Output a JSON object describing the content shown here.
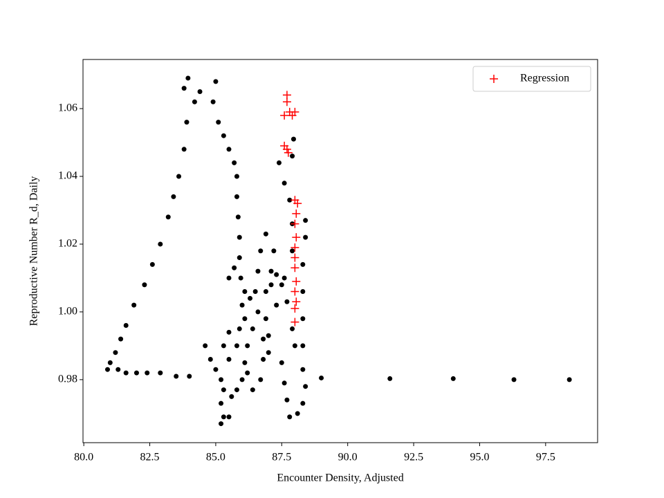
{
  "chart_data": {
    "type": "scatter",
    "xlabel": "Encounter Density, Adjusted",
    "ylabel": "Reproductive Number R_d, Daily",
    "xlim": [
      79.97,
      99.47
    ],
    "ylim": [
      0.9614,
      1.0745
    ],
    "xticks": [
      {
        "value": 80,
        "label": "80.0"
      },
      82.5,
      {
        "value": 85,
        "label": "85.0"
      },
      87.5,
      {
        "value": 90,
        "label": "90.0"
      },
      92.5,
      {
        "value": 95,
        "label": "95.0"
      },
      97.5
    ],
    "yticks": [
      0.98,
      {
        "value": 1,
        "label": "1.00"
      },
      1.02,
      1.04,
      1.06
    ],
    "legend": "upper right",
    "series": [
      {
        "marker": "o",
        "color": "#000000",
        "x": [
          80.9,
          81.0,
          81.2,
          81.4,
          81.6,
          81.9,
          82.3,
          82.6,
          82.9,
          83.2,
          83.4,
          83.6,
          83.8,
          83.9,
          83.8,
          83.95,
          84.2,
          84.4,
          85.0,
          84.9,
          85.1,
          85.3,
          85.5,
          85.7,
          85.8,
          85.8,
          85.85,
          85.9,
          85.9,
          85.95,
          86.1,
          86.0,
          85.7,
          85.5,
          81.3,
          81.6,
          82.0,
          82.4,
          82.9,
          83.5,
          84.0,
          84.6,
          84.8,
          85.0,
          85.2,
          85.3,
          85.2,
          85.3,
          85.2,
          85.5,
          85.6,
          85.8,
          86.0,
          86.1,
          86.2,
          86.4,
          86.6,
          86.9,
          87.1,
          87.2,
          86.9,
          86.7,
          86.6,
          86.5,
          86.3,
          86.1,
          85.9,
          85.5,
          85.3,
          85.5,
          85.8,
          86.2,
          86.4,
          86.7,
          86.8,
          87.0,
          87.3,
          87.5,
          87.3,
          87.1,
          86.9,
          86.8,
          87.0,
          87.5,
          87.6,
          87.7,
          87.8,
          88.1,
          88.3,
          88.4,
          88.3,
          88.3,
          88.3,
          88.3,
          88.3,
          88.4,
          88.4,
          88.0,
          87.9,
          87.7,
          87.6,
          87.9,
          87.9,
          87.8,
          87.6,
          87.4,
          87.9,
          87.95,
          89.0,
          91.6,
          94.0,
          96.3,
          98.4
        ],
        "y": [
          0.983,
          0.985,
          0.988,
          0.992,
          0.996,
          1.002,
          1.008,
          1.014,
          1.02,
          1.028,
          1.034,
          1.04,
          1.048,
          1.056,
          1.066,
          1.069,
          1.062,
          1.065,
          1.068,
          1.062,
          1.056,
          1.052,
          1.048,
          1.044,
          1.04,
          1.034,
          1.028,
          1.022,
          1.016,
          1.01,
          1.006,
          1.002,
          1.013,
          1.01,
          0.983,
          0.982,
          0.982,
          0.982,
          0.982,
          0.981,
          0.981,
          0.99,
          0.986,
          0.983,
          0.98,
          0.977,
          0.973,
          0.969,
          0.967,
          0.969,
          0.975,
          0.977,
          0.98,
          0.985,
          0.99,
          0.995,
          1.0,
          1.006,
          1.012,
          1.018,
          1.023,
          1.018,
          1.012,
          1.006,
          1.004,
          0.998,
          0.995,
          0.994,
          0.99,
          0.986,
          0.99,
          0.982,
          0.977,
          0.98,
          0.986,
          0.993,
          1.002,
          1.008,
          1.011,
          1.008,
          0.998,
          0.992,
          0.988,
          0.985,
          0.979,
          0.974,
          0.969,
          0.97,
          0.973,
          0.978,
          0.983,
          0.99,
          0.998,
          1.006,
          1.014,
          1.022,
          1.027,
          0.99,
          0.995,
          1.003,
          1.01,
          1.018,
          1.026,
          1.033,
          1.038,
          1.044,
          1.046,
          1.051,
          0.9805,
          0.9803,
          0.9803,
          0.98,
          0.98
        ]
      },
      {
        "name": "Regression",
        "marker": "+",
        "color": "#ff0000",
        "x": [
          87.7,
          87.7,
          87.6,
          87.8,
          88.0,
          87.9,
          87.6,
          87.7,
          87.75,
          88.0,
          88.1,
          88.05,
          88.0,
          88.05,
          88.0,
          88.0,
          88.0,
          88.05,
          88.0,
          88.05,
          88.0,
          88.0
        ],
        "y": [
          1.064,
          1.062,
          1.058,
          1.059,
          1.059,
          1.058,
          1.049,
          1.048,
          1.047,
          1.033,
          1.032,
          1.029,
          1.026,
          1.022,
          1.019,
          1.016,
          1.013,
          1.009,
          1.006,
          1.003,
          1.001,
          0.997
        ]
      }
    ]
  }
}
